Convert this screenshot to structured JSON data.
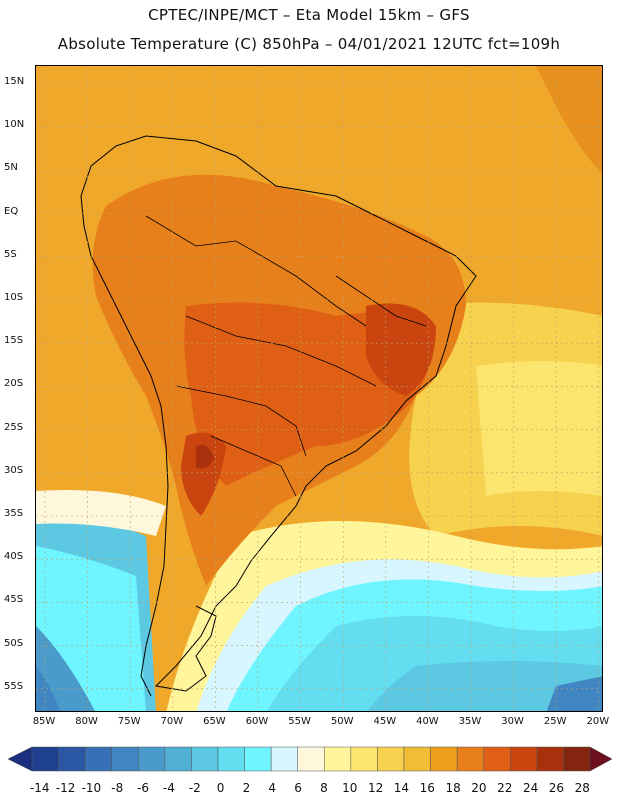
{
  "header": {
    "line1": "CPTEC/INPE/MCT –  Eta Model 15km – GFS",
    "line2": "Absolute Temperature (C) 850hPa – 04/01/2021 12UTC fct=109h"
  },
  "axes": {
    "lat_labels": [
      "15N",
      "10N",
      "5N",
      "EQ",
      "5S",
      "10S",
      "15S",
      "20S",
      "25S",
      "30S",
      "35S",
      "40S",
      "45S",
      "50S",
      "55S"
    ],
    "lon_labels": [
      "85W",
      "80W",
      "75W",
      "70W",
      "65W",
      "60W",
      "55W",
      "50W",
      "45W",
      "40W",
      "35W",
      "30W",
      "25W",
      "20W"
    ]
  },
  "colorbar": {
    "labels": [
      "-14",
      "-12",
      "-10",
      "-8",
      "-6",
      "-4",
      "-2",
      "0",
      "2",
      "4",
      "6",
      "8",
      "10",
      "12",
      "14",
      "16",
      "18",
      "20",
      "22",
      "24",
      "26",
      "28"
    ],
    "colors": [
      "#1f3f8f",
      "#2a56a3",
      "#3670b5",
      "#3f86c2",
      "#4a9bcc",
      "#52b0d6",
      "#5cc8e2",
      "#63def0",
      "#6ff5ff",
      "#d8f6ff",
      "#fff7dc",
      "#fff59a",
      "#fbe56e",
      "#f6d24f",
      "#f1bd34",
      "#ee9f1c",
      "#e7801a",
      "#df5f14",
      "#c9440f",
      "#a8300d",
      "#842510"
    ]
  },
  "colors": {
    "background_warm": "#efa82a",
    "ocean_cold": "#66eaf8",
    "land_hot": "#d7661c",
    "land_hottest": "#b9461a"
  }
}
